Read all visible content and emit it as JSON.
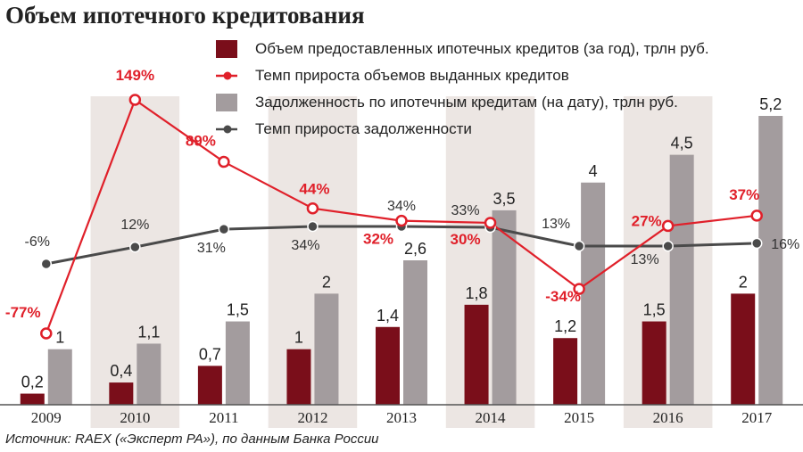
{
  "title": "Объем ипотечного кредитования",
  "source": "Источник: RAEX («Эксперт РА»), по данным Банка России",
  "colors": {
    "issued_bar": "#7a0e1a",
    "issued_line": "#e0202a",
    "debt_bar": "#a39c9e",
    "debt_line": "#4a4a4a",
    "band": "#ece6e3"
  },
  "chart_data": {
    "type": "bar",
    "title": "Объем ипотечного кредитования",
    "categories": [
      "2009",
      "2010",
      "2011",
      "2012",
      "2013",
      "2014",
      "2015",
      "2016",
      "2017"
    ],
    "series": [
      {
        "name": "Объем предоставленных ипотечных кредитов (за год), трлн руб.",
        "type": "bar",
        "values": [
          0.2,
          0.4,
          0.7,
          1,
          1.4,
          1.8,
          1.2,
          1.5,
          2
        ],
        "labels": [
          "0,2",
          "0,4",
          "0,7",
          "1",
          "1,4",
          "1,8",
          "1,2",
          "1,5",
          "2"
        ]
      },
      {
        "name": "Темп прироста объемов выданных кредитов",
        "type": "line",
        "values": [
          -77,
          149,
          89,
          44,
          32,
          30,
          -34,
          27,
          37
        ],
        "labels": [
          "-77%",
          "149%",
          "89%",
          "44%",
          "32%",
          "30%",
          "-34%",
          "27%",
          "37%"
        ]
      },
      {
        "name": "Задолженность по ипотечным кредитам (на дату), трлн руб.",
        "type": "bar",
        "values": [
          1,
          1.1,
          1.5,
          2,
          2.6,
          3.5,
          4,
          4.5,
          5.2
        ],
        "labels": [
          "1",
          "1,1",
          "1,5",
          "2",
          "2,6",
          "3,5",
          "4",
          "4,5",
          "5,2"
        ]
      },
      {
        "name": "Темп прироста задолженности",
        "type": "line",
        "values": [
          -6,
          12,
          31,
          34,
          34,
          33,
          13,
          13,
          16
        ],
        "labels": [
          "-6%",
          "12%",
          "31%",
          "34%",
          "34%",
          "33%",
          "13%",
          "13%",
          "16%"
        ]
      }
    ],
    "ylim": [
      0,
      5.2
    ],
    "grid": false,
    "legend": "top"
  }
}
